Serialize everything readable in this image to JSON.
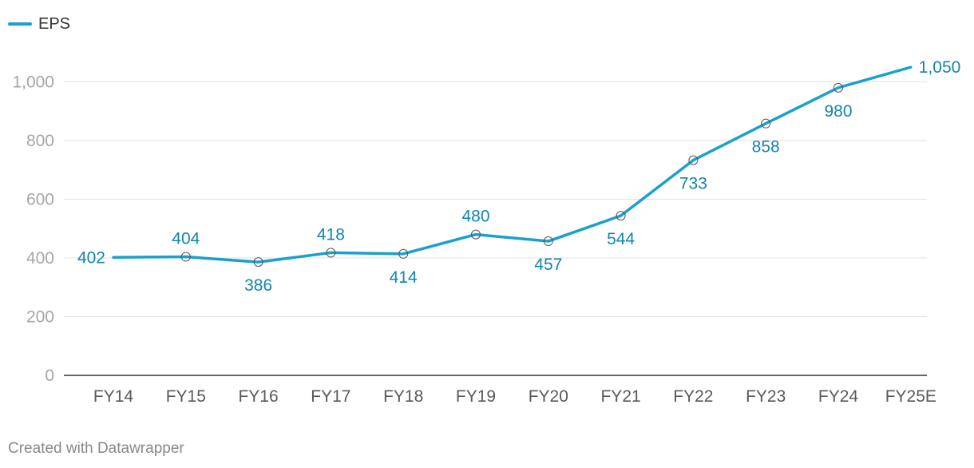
{
  "chart_data": {
    "type": "line",
    "title": "",
    "xlabel": "",
    "ylabel": "",
    "categories": [
      "FY14",
      "FY15",
      "FY16",
      "FY17",
      "FY18",
      "FY19",
      "FY20",
      "FY21",
      "FY22",
      "FY23",
      "FY24",
      "FY25E"
    ],
    "series": [
      {
        "name": "EPS",
        "values": [
          402,
          404,
          386,
          418,
          414,
          480,
          457,
          544,
          733,
          858,
          980,
          1050
        ],
        "labels": [
          "402",
          "404",
          "386",
          "418",
          "414",
          "480",
          "457",
          "544",
          "733",
          "858",
          "980",
          "1,050"
        ]
      }
    ],
    "ylim": [
      0,
      1000
    ],
    "yticks": [
      0,
      200,
      400,
      600,
      800,
      1000
    ],
    "ytick_labels": [
      "0",
      "200",
      "400",
      "600",
      "800",
      "1,000"
    ],
    "grid": true,
    "legend": "top-left"
  },
  "legend": {
    "label": "EPS"
  },
  "footer": {
    "credit": "Created with Datawrapper"
  },
  "colors": {
    "line": "#1aa0cc",
    "label": "#1185ad",
    "grid": "#e2e2e2",
    "axis": "#333333"
  }
}
